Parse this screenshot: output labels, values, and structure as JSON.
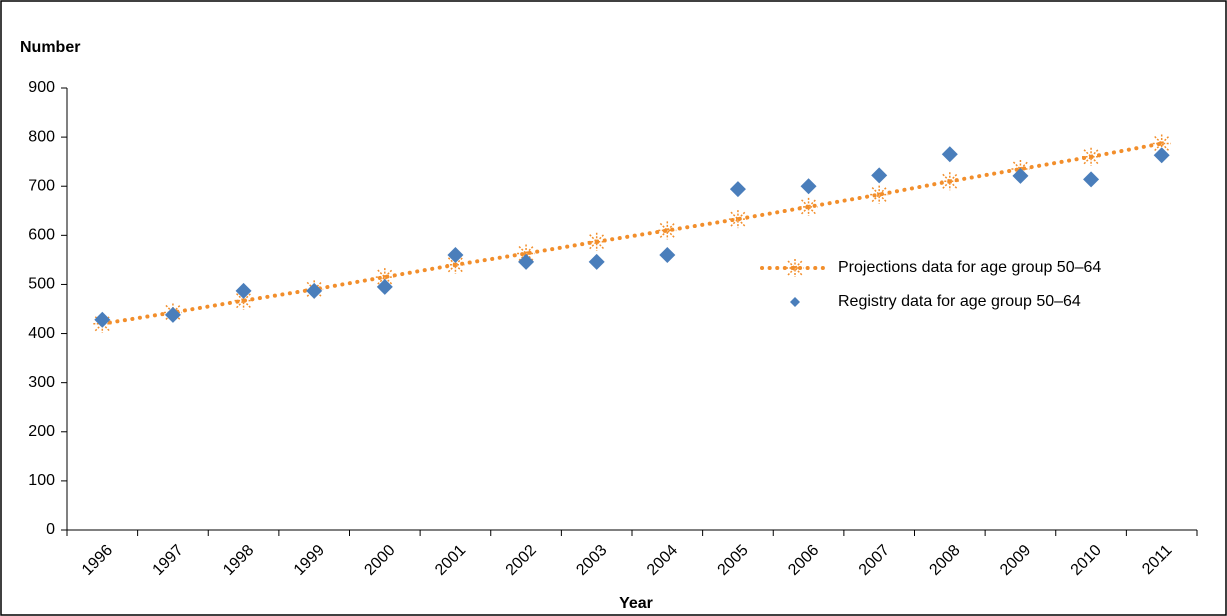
{
  "chart_data": {
    "type": "scatter-line",
    "y_label": "Number",
    "x_label": "Year",
    "categories": [
      "1996",
      "1997",
      "1998",
      "1999",
      "2000",
      "2001",
      "2002",
      "2003",
      "2004",
      "2005",
      "2006",
      "2007",
      "2008",
      "2009",
      "2010",
      "2011"
    ],
    "series": [
      {
        "name": "Projections data for age group 50–64",
        "color": "#f28e2b",
        "style": "dotted-line-star",
        "values": [
          420,
          443,
          467,
          490,
          515,
          540,
          563,
          587,
          610,
          633,
          658,
          683,
          710,
          735,
          760,
          787
        ]
      },
      {
        "name": "Registry data for age group 50–64",
        "color": "#4a7ebb",
        "style": "diamond",
        "values": [
          428,
          438,
          487,
          487,
          495,
          560,
          546,
          546,
          560,
          694,
          700,
          722,
          765,
          721,
          714,
          763
        ]
      }
    ],
    "ylim": [
      0,
      900
    ],
    "yticks": [
      0,
      100,
      200,
      300,
      400,
      500,
      600,
      700,
      800,
      900
    ],
    "grid": false
  }
}
